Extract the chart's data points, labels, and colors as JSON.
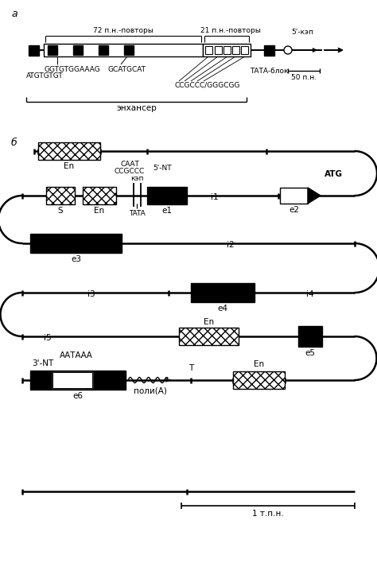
{
  "title_a": "а",
  "title_b": "б",
  "bg_color": "#ffffff",
  "line_color": "#000000",
  "scale_bar_a": "50 п.н.",
  "scale_bar_b": "1 т.п.н.",
  "enhancer_label": "энхансер",
  "label_72": "72 п.н.-повторы",
  "label_21": "21 п.н.-повторы",
  "label_5cap": "5'-кэп",
  "label_tata": "ТАТА-блок",
  "label_atg": "ATGTGTGT",
  "label_ggt": "GGTGTGGAAAG",
  "label_gca": "GCATGCAT",
  "label_ccg": "CCGCCC/GGGCGG",
  "label_caat": "СААT",
  "label_ccgccc": "CCGCCC",
  "label_kep": "кэп",
  "label_5nt": "5'-NT",
  "label_tata2": "TATA",
  "label_atg2": "ATG",
  "label_3nt": "3'-NT",
  "label_aataaa": "ААТААА",
  "label_polya": "поли(А)",
  "label_T": "T",
  "label_En": "En",
  "label_S": "S",
  "row_labels": [
    "e1",
    "e2",
    "e3",
    "e4",
    "e5",
    "e6",
    "i1",
    "i2",
    "i3",
    "i4",
    "i5"
  ]
}
